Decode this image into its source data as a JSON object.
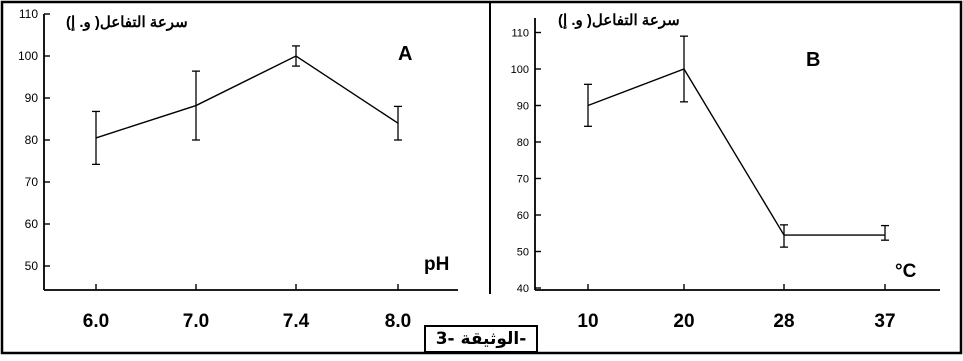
{
  "document_caption": "الوثيقة -3-",
  "chart_data": [
    {
      "type": "line",
      "panel_label": "A",
      "title": "",
      "ylabel": "سرعة التفاعل( و. إ)",
      "xlabel": "pH",
      "categories": [
        "6.0",
        "7.0",
        "7.4",
        "8.0"
      ],
      "values": [
        80.5,
        88.2,
        100,
        84
      ],
      "error_low": [
        74.2,
        80,
        97.6,
        80
      ],
      "error_high": [
        86.8,
        96.4,
        102.4,
        88
      ],
      "ylim": [
        45,
        110
      ],
      "yticks": [
        50,
        60,
        70,
        80,
        90,
        100,
        110
      ],
      "grid": false,
      "legend": "none"
    },
    {
      "type": "line",
      "panel_label": "B",
      "title": "",
      "ylabel": "سرعة التفاعل( و. إ)",
      "xlabel": "°C",
      "categories": [
        "10",
        "20",
        "28",
        "37"
      ],
      "values": [
        90,
        100,
        54.5,
        54.5
      ],
      "error_low": [
        84.3,
        91,
        51.2,
        53.1
      ],
      "error_high": [
        95.8,
        109,
        57.3,
        57.1
      ],
      "ylim": [
        40,
        110
      ],
      "yticks": [
        40,
        50,
        60,
        70,
        80,
        90,
        100,
        110
      ],
      "grid": false,
      "legend": "none"
    }
  ]
}
